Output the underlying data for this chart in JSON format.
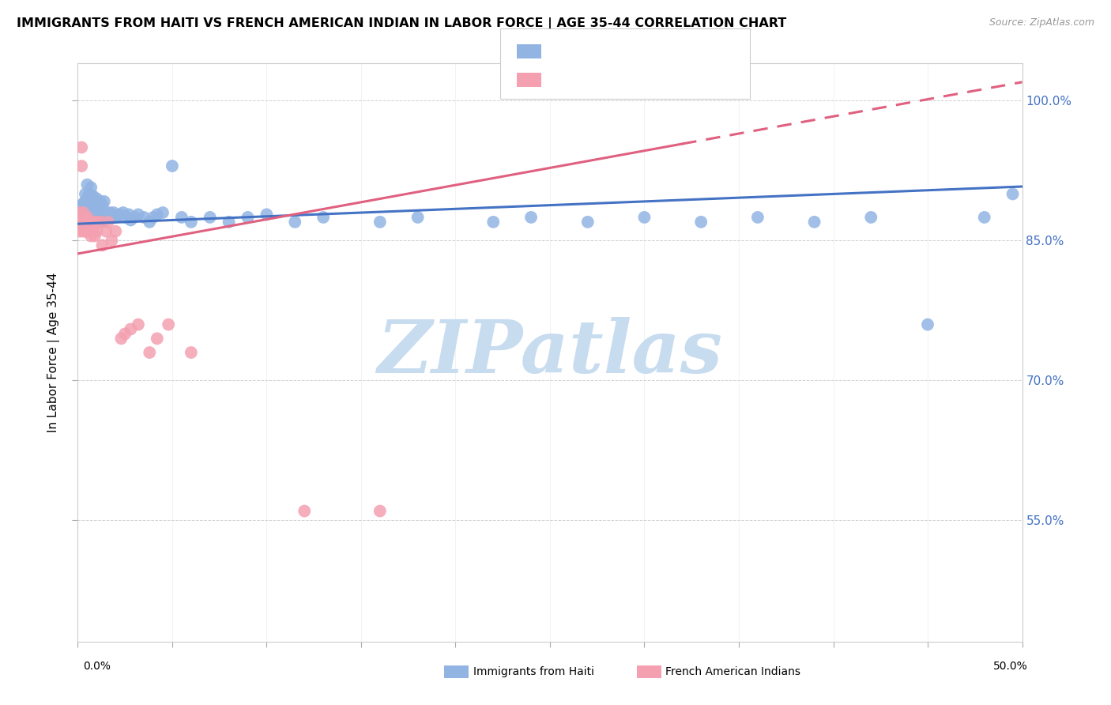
{
  "title": "IMMIGRANTS FROM HAITI VS FRENCH AMERICAN INDIAN IN LABOR FORCE | AGE 35-44 CORRELATION CHART",
  "source": "Source: ZipAtlas.com",
  "ylabel": "In Labor Force | Age 35-44",
  "xmin": 0.0,
  "xmax": 0.5,
  "ymin": 0.42,
  "ymax": 1.04,
  "legend_label1": "Immigrants from Haiti",
  "legend_label2": "French American Indians",
  "blue_color": "#92B4E3",
  "pink_color": "#F4A0B0",
  "blue_line_color": "#4472C4",
  "pink_line_color": "#E06080",
  "watermark": "ZIPatlas",
  "watermark_color": "#C8DCF0",
  "blue_line_x0": 0.0,
  "blue_line_y0": 0.868,
  "blue_line_x1": 0.5,
  "blue_line_y1": 0.908,
  "pink_line_x0": 0.0,
  "pink_line_y0": 0.836,
  "pink_line_x1": 0.5,
  "pink_line_y1": 1.02,
  "blue_scatter_x": [
    0.001,
    0.001,
    0.002,
    0.002,
    0.002,
    0.003,
    0.003,
    0.003,
    0.003,
    0.004,
    0.004,
    0.004,
    0.004,
    0.004,
    0.005,
    0.005,
    0.005,
    0.005,
    0.006,
    0.006,
    0.006,
    0.007,
    0.007,
    0.007,
    0.007,
    0.008,
    0.008,
    0.008,
    0.009,
    0.009,
    0.01,
    0.01,
    0.01,
    0.011,
    0.011,
    0.012,
    0.012,
    0.013,
    0.013,
    0.014,
    0.014,
    0.015,
    0.016,
    0.017,
    0.018,
    0.019,
    0.02,
    0.022,
    0.024,
    0.025,
    0.027,
    0.028,
    0.03,
    0.032,
    0.035,
    0.038,
    0.04,
    0.042,
    0.045,
    0.05,
    0.055,
    0.06,
    0.07,
    0.08,
    0.09,
    0.1,
    0.115,
    0.13,
    0.16,
    0.18,
    0.22,
    0.24,
    0.27,
    0.3,
    0.33,
    0.36,
    0.39,
    0.42,
    0.45,
    0.48,
    0.495
  ],
  "blue_scatter_y": [
    0.87,
    0.875,
    0.868,
    0.88,
    0.888,
    0.87,
    0.882,
    0.89,
    0.875,
    0.87,
    0.88,
    0.892,
    0.875,
    0.9,
    0.87,
    0.885,
    0.895,
    0.91,
    0.872,
    0.885,
    0.9,
    0.87,
    0.88,
    0.893,
    0.907,
    0.872,
    0.885,
    0.898,
    0.875,
    0.89,
    0.87,
    0.882,
    0.895,
    0.87,
    0.885,
    0.875,
    0.892,
    0.87,
    0.888,
    0.875,
    0.892,
    0.88,
    0.875,
    0.88,
    0.875,
    0.88,
    0.875,
    0.878,
    0.88,
    0.875,
    0.878,
    0.872,
    0.875,
    0.878,
    0.875,
    0.87,
    0.875,
    0.878,
    0.88,
    0.93,
    0.875,
    0.87,
    0.875,
    0.87,
    0.875,
    0.878,
    0.87,
    0.875,
    0.87,
    0.875,
    0.87,
    0.875,
    0.87,
    0.875,
    0.87,
    0.875,
    0.87,
    0.875,
    0.76,
    0.875,
    0.9
  ],
  "pink_scatter_x": [
    0.001,
    0.001,
    0.001,
    0.002,
    0.002,
    0.002,
    0.003,
    0.003,
    0.003,
    0.004,
    0.004,
    0.004,
    0.005,
    0.005,
    0.005,
    0.006,
    0.006,
    0.007,
    0.007,
    0.008,
    0.008,
    0.009,
    0.01,
    0.01,
    0.012,
    0.013,
    0.015,
    0.016,
    0.018,
    0.02,
    0.023,
    0.025,
    0.028,
    0.032,
    0.038,
    0.042,
    0.048,
    0.06,
    0.12,
    0.16
  ],
  "pink_scatter_y": [
    0.87,
    0.88,
    0.86,
    0.93,
    0.95,
    0.875,
    0.86,
    0.88,
    0.87,
    0.87,
    0.875,
    0.86,
    0.875,
    0.86,
    0.87,
    0.87,
    0.86,
    0.855,
    0.87,
    0.86,
    0.87,
    0.855,
    0.86,
    0.87,
    0.87,
    0.845,
    0.86,
    0.87,
    0.85,
    0.86,
    0.745,
    0.75,
    0.755,
    0.76,
    0.73,
    0.745,
    0.76,
    0.73,
    0.56,
    0.56
  ]
}
